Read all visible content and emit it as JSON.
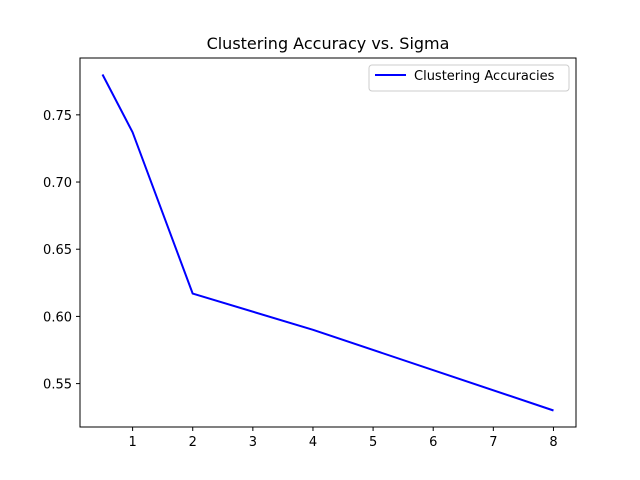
{
  "chart_data": {
    "type": "line",
    "title": "Clustering Accuracy vs. Sigma",
    "xlabel": "",
    "ylabel": "",
    "x_ticks": [
      1,
      2,
      3,
      4,
      5,
      6,
      7,
      8
    ],
    "y_ticks": [
      "0.55",
      "0.60",
      "0.65",
      "0.70",
      "0.75"
    ],
    "xlim": [
      0.125,
      8.375
    ],
    "ylim": [
      0.5177,
      0.7923
    ],
    "grid": false,
    "legend_position": "top-right",
    "series": [
      {
        "name": "Clustering Accuracies",
        "color": "#0000ff",
        "x": [
          0.5,
          1,
          2,
          4,
          8
        ],
        "y": [
          0.78,
          0.737,
          0.617,
          0.59,
          0.53
        ]
      }
    ]
  }
}
